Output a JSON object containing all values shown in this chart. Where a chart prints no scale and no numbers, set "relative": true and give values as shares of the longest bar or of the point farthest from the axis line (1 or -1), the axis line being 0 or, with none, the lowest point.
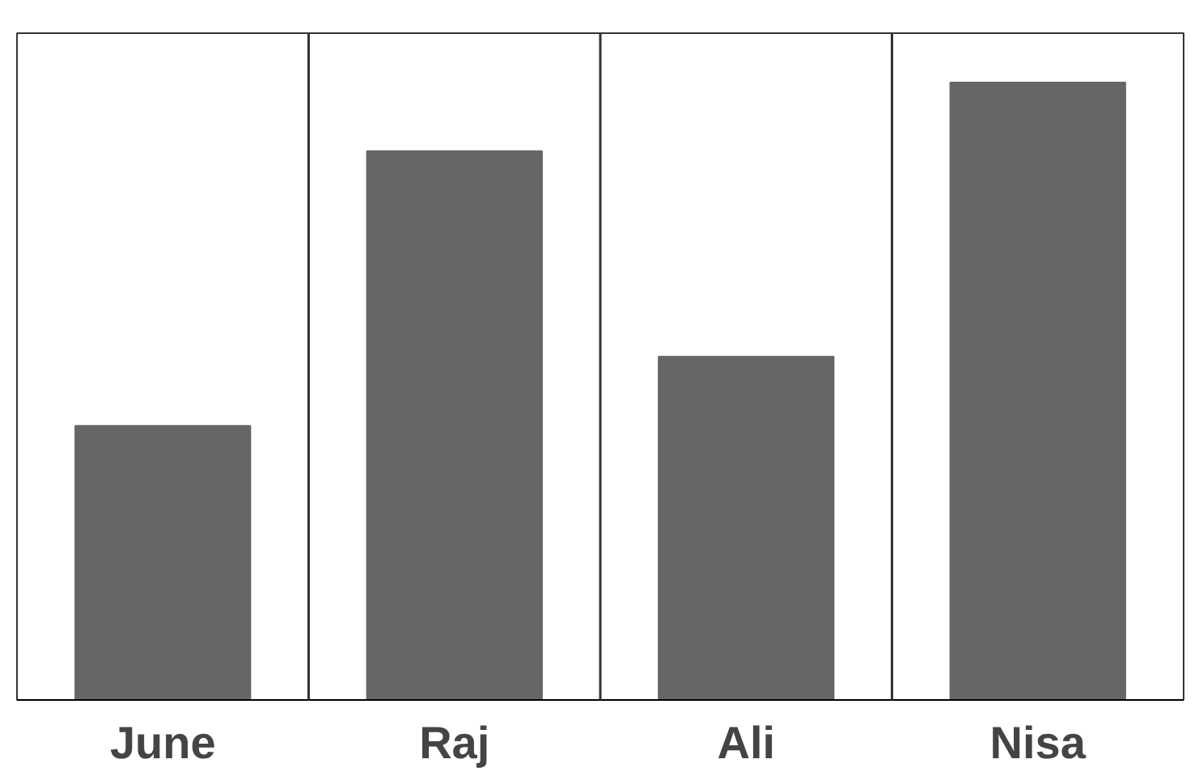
{
  "chart_data": {
    "type": "bar",
    "relative": true,
    "categories": [
      "June",
      "Raj",
      "Ali",
      "Nisa"
    ],
    "values": [
      0.444,
      0.889,
      0.556,
      1
    ],
    "color": "#666666",
    "grid": false
  }
}
